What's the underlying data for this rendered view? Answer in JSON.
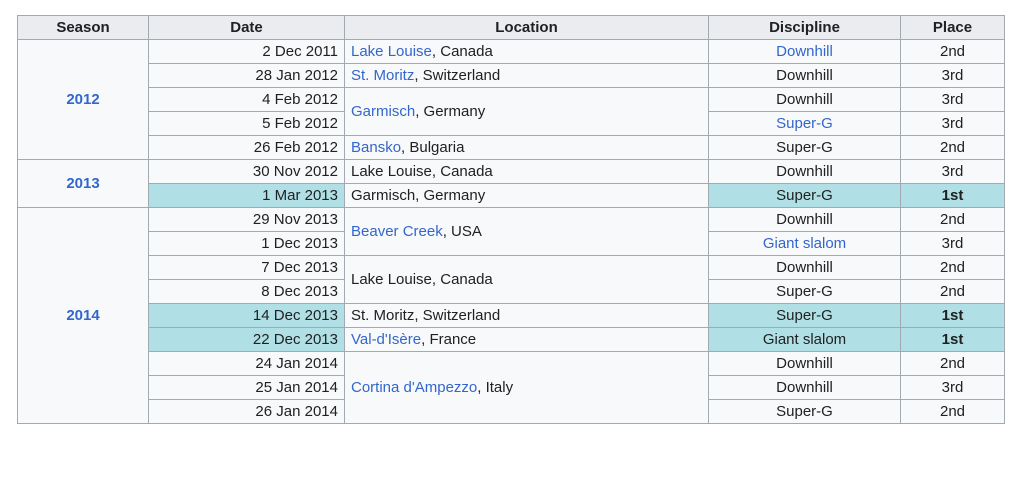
{
  "headers": {
    "season": "Season",
    "date": "Date",
    "location": "Location",
    "discipline": "Discipline",
    "place": "Place"
  },
  "seasons": [
    "2012",
    "2013",
    "2014"
  ],
  "rows": [
    {
      "date": "2 Dec 2011",
      "location_link": "Lake Louise",
      "location_rest": ", Canada",
      "discipline": "Downhill",
      "place": "2nd"
    },
    {
      "date": "28 Jan 2012",
      "location_link": "St. Moritz",
      "location_rest": ", Switzerland",
      "discipline": "Downhill",
      "place": "3rd"
    },
    {
      "date": "4 Feb 2012",
      "location_link": "Garmisch",
      "location_rest": ", Germany",
      "discipline": "Downhill",
      "place": "3rd"
    },
    {
      "date": "5 Feb 2012",
      "discipline": "Super-G",
      "place": "3rd"
    },
    {
      "date": "26 Feb 2012",
      "location_link": "Bansko",
      "location_rest": ", Bulgaria",
      "discipline": "Super-G",
      "place": "2nd"
    },
    {
      "date": "30 Nov 2012",
      "location_text": "Lake Louise, Canada",
      "discipline": "Downhill",
      "place": "3rd"
    },
    {
      "date": "1 Mar 2013",
      "location_text": "Garmisch, Germany",
      "discipline": "Super-G",
      "place": "1st"
    },
    {
      "date": "29 Nov 2013",
      "location_link": "Beaver Creek",
      "location_rest": ", USA",
      "discipline": "Downhill",
      "place": "2nd"
    },
    {
      "date": "1 Dec 2013",
      "discipline": "Giant slalom",
      "place": "3rd"
    },
    {
      "date": "7 Dec 2013",
      "location_text": "Lake Louise, Canada",
      "discipline": "Downhill",
      "place": "2nd"
    },
    {
      "date": "8 Dec 2013",
      "discipline": "Super-G",
      "place": "2nd"
    },
    {
      "date": "14 Dec 2013",
      "location_text": "St. Moritz, Switzerland",
      "discipline": "Super-G",
      "place": "1st"
    },
    {
      "date": "22 Dec 2013",
      "location_link": "Val-d'Isère",
      "location_rest": ", France",
      "discipline": "Giant slalom",
      "place": "1st"
    },
    {
      "date": "24 Jan 2014",
      "location_link": "Cortina d'Ampezzo",
      "location_rest": ", Italy",
      "discipline": "Downhill",
      "place": "2nd"
    },
    {
      "date": "25 Jan 2014",
      "discipline": "Downhill",
      "place": "3rd"
    },
    {
      "date": "26 Jan 2014",
      "discipline": "Super-G",
      "place": "2nd"
    }
  ],
  "colors": {
    "win_highlight": "#b0e0e6",
    "link": "#3366cc",
    "header_bg": "#eaecf0",
    "cell_bg": "#f8f9fa",
    "border": "#a2a9b1"
  }
}
